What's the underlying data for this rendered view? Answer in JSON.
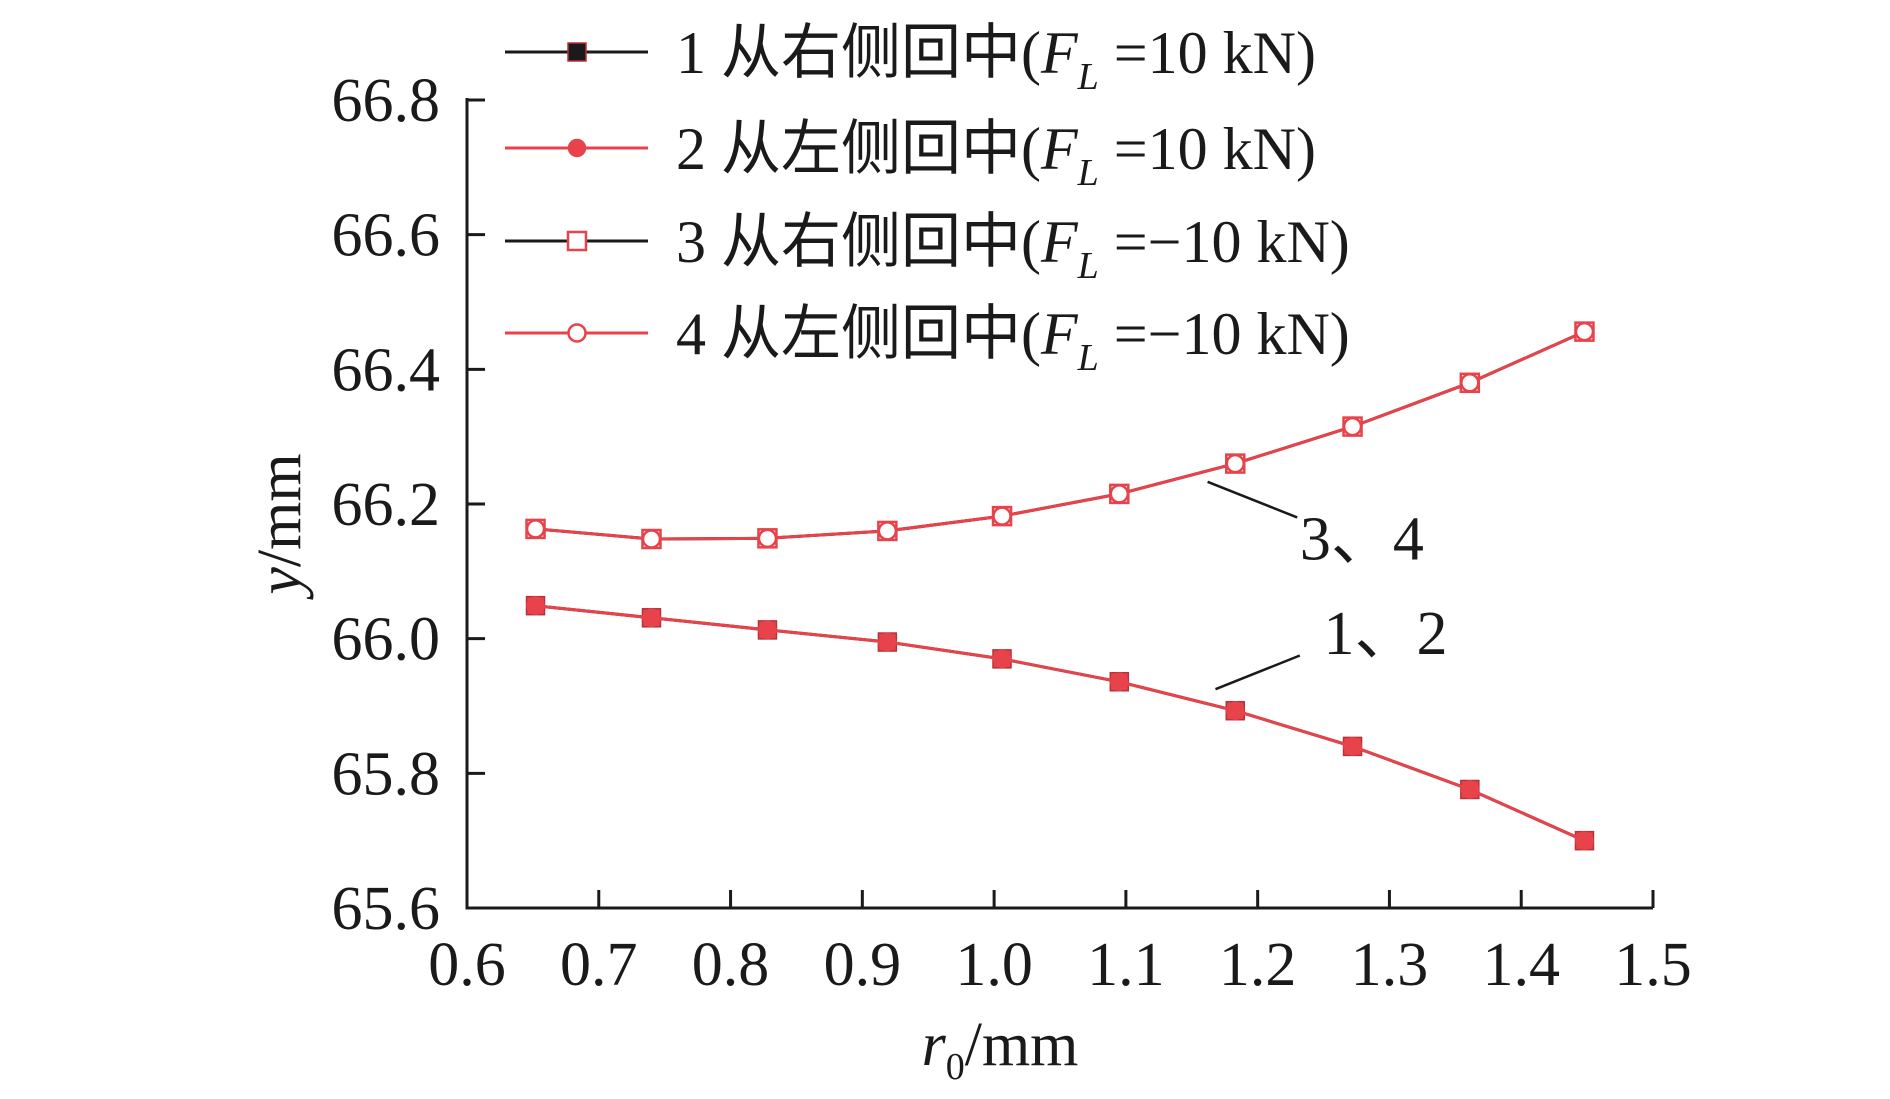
{
  "chart_data": {
    "type": "line",
    "title": "",
    "xlabel": {
      "symbol": "r",
      "subscript": "0",
      "unit": "/mm"
    },
    "ylabel": {
      "symbol": "y",
      "unit": "/mm"
    },
    "xlim": [
      0.6,
      1.5
    ],
    "ylim": [
      65.6,
      66.8
    ],
    "x_ticks": [
      "0.6",
      "0.7",
      "0.8",
      "0.9",
      "1.0",
      "1.1",
      "1.2",
      "1.3",
      "1.4",
      "1.5"
    ],
    "y_ticks": [
      "65.6",
      "65.8",
      "66.0",
      "66.2",
      "66.4",
      "66.6",
      "66.8"
    ],
    "x": [
      0.652,
      0.74,
      0.828,
      0.919,
      1.006,
      1.095,
      1.183,
      1.272,
      1.361,
      1.448
    ],
    "series": [
      {
        "name": "1 从右侧回中(F_L =10 kN)",
        "num": "1",
        "desc": " 从右侧回中(",
        "force": "=10 kN)",
        "marker": "square-filled",
        "line_color": "#1a1a1a",
        "marker_color": "#e8424a",
        "values": [
          66.049,
          66.031,
          66.013,
          65.995,
          65.97,
          65.936,
          65.893,
          65.84,
          65.776,
          65.7
        ]
      },
      {
        "name": "2 从左侧回中(F_L =10 kN)",
        "num": "2",
        "desc": " 从左侧回中(",
        "force": "=10 kN)",
        "marker": "circle-filled",
        "line_color": "#e8424a",
        "marker_color": "#e8424a",
        "values": [
          66.049,
          66.031,
          66.013,
          65.995,
          65.97,
          65.936,
          65.893,
          65.84,
          65.776,
          65.7
        ]
      },
      {
        "name": "3 从右侧回中(F_L =−10 kN)",
        "num": "3",
        "desc": " 从右侧回中(",
        "force": "=−10 kN)",
        "marker": "square-open",
        "line_color": "#1a1a1a",
        "marker_color": "#e8424a",
        "values": [
          66.163,
          66.148,
          66.149,
          66.16,
          66.182,
          66.215,
          66.26,
          66.315,
          66.38,
          66.456
        ]
      },
      {
        "name": "4 从左侧回中(F_L =−10 kN)",
        "num": "4",
        "desc": " 从左侧回中(",
        "force": "=−10 kN)",
        "marker": "circle-open",
        "line_color": "#e8424a",
        "marker_color": "#e8424a",
        "values": [
          66.163,
          66.148,
          66.149,
          66.16,
          66.182,
          66.215,
          66.26,
          66.315,
          66.38,
          66.456
        ]
      }
    ],
    "legend_position": "top-left",
    "force_symbol": "F",
    "force_subscript": "L",
    "annotations": [
      {
        "text": "3、4",
        "x": 1.175,
        "y": 66.245
      },
      {
        "text": "1、2",
        "x": 1.18,
        "y": 65.915
      }
    ]
  }
}
